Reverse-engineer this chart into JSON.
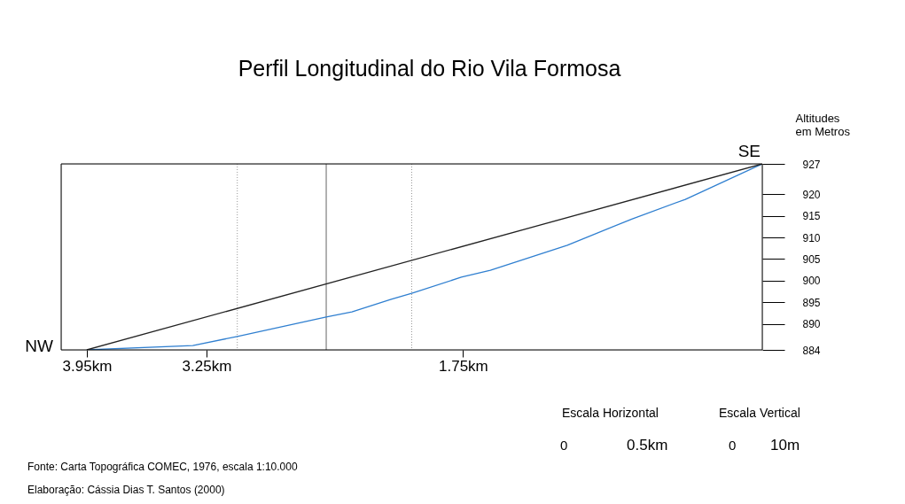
{
  "chart_data": {
    "type": "line",
    "title": "Perfil Longitudinal do Rio Vila Formosa",
    "ylabel": "Altitudes\nem Metros",
    "xlim": [
      4.1,
      0
    ],
    "xticks": [
      {
        "value": 3.95,
        "label": "3.95km"
      },
      {
        "value": 3.25,
        "label": "3.25km"
      },
      {
        "value": 1.75,
        "label": "1.75km"
      }
    ],
    "ylim": [
      884,
      927
    ],
    "yticks": [
      884,
      890,
      895,
      900,
      905,
      910,
      915,
      920,
      927
    ],
    "grid": false,
    "marker": "none",
    "line_style": "solid",
    "series": [
      {
        "color": "#2f7fd0",
        "x": [
          3.95,
          3.33,
          3.07,
          2.55,
          2.4,
          2.17,
          2.05,
          1.76,
          1.59,
          1.14,
          0.76,
          0.45,
          0
        ],
        "values": [
          884,
          885,
          887.1,
          891.6,
          892.8,
          895.7,
          897.1,
          900.8,
          902.4,
          908.2,
          914.3,
          918.8,
          927
        ]
      },
      {
        "color": "#222222",
        "x": [
          3.95,
          0
        ],
        "values": [
          884,
          927
        ]
      }
    ],
    "ref_lines": [
      {
        "axis": "x",
        "value": 3.07,
        "color": "#999999",
        "line_style": "dotted"
      },
      {
        "axis": "x",
        "value": 2.55,
        "color": "#666666",
        "line_style": "solid"
      },
      {
        "axis": "x",
        "value": 2.05,
        "color": "#999999",
        "line_style": "dotted"
      }
    ],
    "annotations": [
      {
        "text": "NW",
        "x": 3.95,
        "y": 884
      },
      {
        "text": "SE",
        "x": 0,
        "y": 927
      },
      "Escala Horizontal",
      "0",
      "0.5km",
      "Escala Vertical",
      "0",
      "10m",
      "Fonte: Carta Topográfica COMEC, 1976, escala 1:10.000",
      "Elaboração: Cássia Dias T. Santos (2000)"
    ]
  }
}
